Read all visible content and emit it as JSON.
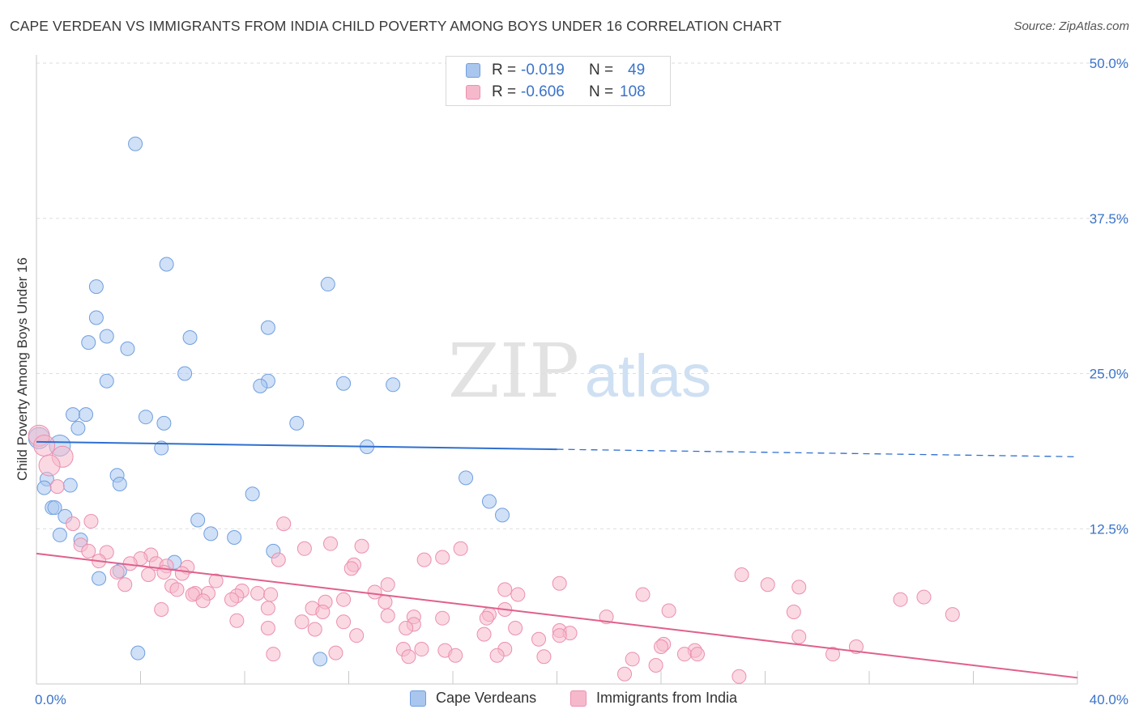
{
  "title": "CAPE VERDEAN VS IMMIGRANTS FROM INDIA CHILD POVERTY AMONG BOYS UNDER 16 CORRELATION CHART",
  "source": "Source: ZipAtlas.com",
  "watermark": {
    "zip": "ZIP",
    "atlas": "atlas"
  },
  "legend_top": [
    {
      "r_label": "R =",
      "r_value": "-0.019",
      "n_label": "N =",
      "n_value": "49",
      "color": "#a9c6ee",
      "border": "#6f9fe0"
    },
    {
      "r_label": "R =",
      "r_value": "-0.606",
      "n_label": "N =",
      "n_value": "108",
      "color": "#f6b9cc",
      "border": "#ec8fae"
    }
  ],
  "legend_bottom": [
    {
      "label": "Cape Verdeans",
      "color": "#a9c6ee",
      "border": "#6f9fe0"
    },
    {
      "label": "Immigrants from India",
      "color": "#f6b9cc",
      "border": "#ec8fae"
    }
  ],
  "chart_data": {
    "type": "scatter",
    "title": "CAPE VERDEAN VS IMMIGRANTS FROM INDIA CHILD POVERTY AMONG BOYS UNDER 16 CORRELATION CHART",
    "xlabel": "",
    "ylabel": "Child Poverty Among Boys Under 16",
    "xlim": [
      0,
      40
    ],
    "ylim": [
      0,
      50
    ],
    "x_tick_labels": [
      "0.0%",
      "40.0%"
    ],
    "y_ticks": [
      12.5,
      25.0,
      37.5,
      50.0
    ],
    "y_tick_labels": [
      "12.5%",
      "25.0%",
      "37.5%",
      "50.0%"
    ],
    "grid": true,
    "legend_position": "top-center",
    "series": [
      {
        "name": "Cape Verdeans",
        "color": "#a9c6ee",
        "stroke": "#6f9fe0",
        "line_color": "#2f6fd0",
        "trend": {
          "x0": 0,
          "y0": 19.5,
          "x1": 40,
          "y1": 18.3,
          "solid_until": 20
        },
        "points": [
          [
            3.8,
            43.5
          ],
          [
            5.0,
            33.8
          ],
          [
            2.3,
            32.0
          ],
          [
            11.2,
            32.2
          ],
          [
            2.3,
            29.5
          ],
          [
            8.9,
            28.7
          ],
          [
            2.7,
            28.0
          ],
          [
            5.9,
            27.9
          ],
          [
            2.0,
            27.5
          ],
          [
            3.5,
            27.0
          ],
          [
            5.7,
            25.0
          ],
          [
            2.7,
            24.4
          ],
          [
            8.9,
            24.4
          ],
          [
            11.8,
            24.2
          ],
          [
            8.6,
            24.0
          ],
          [
            13.7,
            24.1
          ],
          [
            1.4,
            21.7
          ],
          [
            1.9,
            21.7
          ],
          [
            4.2,
            21.5
          ],
          [
            1.6,
            20.6
          ],
          [
            4.9,
            21.0
          ],
          [
            10.0,
            21.0
          ],
          [
            0.1,
            19.8
          ],
          [
            0.9,
            19.2
          ],
          [
            4.8,
            19.0
          ],
          [
            12.7,
            19.1
          ],
          [
            3.1,
            16.8
          ],
          [
            0.4,
            16.5
          ],
          [
            3.2,
            16.1
          ],
          [
            16.5,
            16.6
          ],
          [
            1.3,
            16.0
          ],
          [
            0.3,
            15.8
          ],
          [
            8.3,
            15.3
          ],
          [
            17.4,
            14.7
          ],
          [
            0.6,
            14.2
          ],
          [
            0.7,
            14.2
          ],
          [
            17.9,
            13.6
          ],
          [
            1.1,
            13.5
          ],
          [
            6.2,
            13.2
          ],
          [
            6.7,
            12.1
          ],
          [
            7.6,
            11.8
          ],
          [
            0.9,
            12.0
          ],
          [
            1.7,
            11.6
          ],
          [
            9.1,
            10.7
          ],
          [
            5.3,
            9.8
          ],
          [
            3.2,
            9.1
          ],
          [
            2.4,
            8.5
          ],
          [
            3.9,
            2.5
          ],
          [
            10.9,
            2.0
          ]
        ]
      },
      {
        "name": "Immigrants from India",
        "color": "#f6b9cc",
        "stroke": "#ec8fae",
        "line_color": "#e0608c",
        "trend": {
          "x0": 0,
          "y0": 10.5,
          "x1": 40,
          "y1": 0.5,
          "solid_until": 40
        },
        "points": [
          [
            0.1,
            20.0
          ],
          [
            0.3,
            19.2
          ],
          [
            1.0,
            18.3
          ],
          [
            0.5,
            17.6
          ],
          [
            0.8,
            15.9
          ],
          [
            2.1,
            13.1
          ],
          [
            1.4,
            12.9
          ],
          [
            9.5,
            12.9
          ],
          [
            11.3,
            11.3
          ],
          [
            1.7,
            11.2
          ],
          [
            12.5,
            11.1
          ],
          [
            10.3,
            10.9
          ],
          [
            16.3,
            10.9
          ],
          [
            2.0,
            10.7
          ],
          [
            2.7,
            10.6
          ],
          [
            4.4,
            10.4
          ],
          [
            15.6,
            10.2
          ],
          [
            4.0,
            10.1
          ],
          [
            9.3,
            10.0
          ],
          [
            14.9,
            10.0
          ],
          [
            2.4,
            9.9
          ],
          [
            3.6,
            9.7
          ],
          [
            4.6,
            9.7
          ],
          [
            5.0,
            9.5
          ],
          [
            12.2,
            9.6
          ],
          [
            5.8,
            9.4
          ],
          [
            12.1,
            9.3
          ],
          [
            4.9,
            9.0
          ],
          [
            3.1,
            9.0
          ],
          [
            4.3,
            8.8
          ],
          [
            5.6,
            8.9
          ],
          [
            27.1,
            8.8
          ],
          [
            6.9,
            8.3
          ],
          [
            13.5,
            8.0
          ],
          [
            3.4,
            8.0
          ],
          [
            20.1,
            8.1
          ],
          [
            5.2,
            7.9
          ],
          [
            28.1,
            8.0
          ],
          [
            29.3,
            7.8
          ],
          [
            18.0,
            7.6
          ],
          [
            5.4,
            7.6
          ],
          [
            7.9,
            7.5
          ],
          [
            6.1,
            7.3
          ],
          [
            6.6,
            7.3
          ],
          [
            13.0,
            7.4
          ],
          [
            8.5,
            7.3
          ],
          [
            6.0,
            7.2
          ],
          [
            9.0,
            7.2
          ],
          [
            7.7,
            7.1
          ],
          [
            18.5,
            7.2
          ],
          [
            23.3,
            7.2
          ],
          [
            34.1,
            7.0
          ],
          [
            11.8,
            6.8
          ],
          [
            6.4,
            6.7
          ],
          [
            33.2,
            6.8
          ],
          [
            7.5,
            6.8
          ],
          [
            11.1,
            6.6
          ],
          [
            13.4,
            6.6
          ],
          [
            8.9,
            6.1
          ],
          [
            10.6,
            6.1
          ],
          [
            18.0,
            6.0
          ],
          [
            4.8,
            6.0
          ],
          [
            24.3,
            5.9
          ],
          [
            29.1,
            5.8
          ],
          [
            11.0,
            5.8
          ],
          [
            17.4,
            5.6
          ],
          [
            35.2,
            5.6
          ],
          [
            13.5,
            5.5
          ],
          [
            15.6,
            5.3
          ],
          [
            17.3,
            5.3
          ],
          [
            14.5,
            5.4
          ],
          [
            21.9,
            5.4
          ],
          [
            7.7,
            5.1
          ],
          [
            10.2,
            5.0
          ],
          [
            11.8,
            5.0
          ],
          [
            14.5,
            4.8
          ],
          [
            18.4,
            4.5
          ],
          [
            14.2,
            4.5
          ],
          [
            8.9,
            4.5
          ],
          [
            10.7,
            4.4
          ],
          [
            20.1,
            4.3
          ],
          [
            20.5,
            4.1
          ],
          [
            17.2,
            4.0
          ],
          [
            12.3,
            3.9
          ],
          [
            20.1,
            3.9
          ],
          [
            29.3,
            3.8
          ],
          [
            19.3,
            3.6
          ],
          [
            24.1,
            3.2
          ],
          [
            24.0,
            3.0
          ],
          [
            14.8,
            2.8
          ],
          [
            14.1,
            2.8
          ],
          [
            18.0,
            2.8
          ],
          [
            25.3,
            2.7
          ],
          [
            15.7,
            2.7
          ],
          [
            31.5,
            3.0
          ],
          [
            16.1,
            2.3
          ],
          [
            14.3,
            2.2
          ],
          [
            19.5,
            2.2
          ],
          [
            24.9,
            2.4
          ],
          [
            25.4,
            2.4
          ],
          [
            17.7,
            2.3
          ],
          [
            30.6,
            2.4
          ],
          [
            22.9,
            2.0
          ],
          [
            23.8,
            1.5
          ],
          [
            11.5,
            2.5
          ],
          [
            9.1,
            2.4
          ],
          [
            22.6,
            0.8
          ],
          [
            27.0,
            0.6
          ]
        ]
      }
    ]
  }
}
